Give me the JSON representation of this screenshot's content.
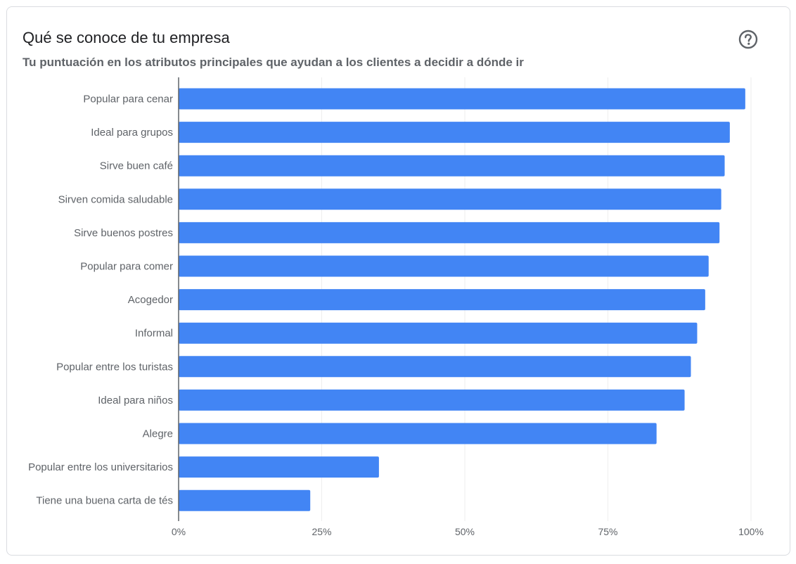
{
  "card": {
    "title": "Qué se conoce de tu empresa",
    "subtitle": "Tu puntuación en los atributos principales que ayudan a los clientes a decidir a dónde ir",
    "help_icon": "help-circle-icon"
  },
  "colors": {
    "bar": "#4285f4",
    "grid": "#eeeeee",
    "axis": "#5f6368",
    "label": "#5f6368"
  },
  "chart_data": {
    "type": "bar",
    "orientation": "horizontal",
    "title": "",
    "xlabel": "",
    "ylabel": "",
    "xlim": [
      0,
      100
    ],
    "grid": true,
    "ticks": [
      {
        "value": 0,
        "label": "0%"
      },
      {
        "value": 25,
        "label": "25%"
      },
      {
        "value": 50,
        "label": "50%"
      },
      {
        "value": 75,
        "label": "75%"
      },
      {
        "value": 100,
        "label": "100%"
      }
    ],
    "categories": [
      "Popular para cenar",
      "Ideal para grupos",
      "Sirve buen café",
      "Sirven comida saludable",
      "Sirve buenos postres",
      "Popular para comer",
      "Acogedor",
      "Informal",
      "Popular entre los turistas",
      "Ideal para niños",
      "Alegre",
      "Popular entre los universitarios",
      "Tiene una buena carta de tés"
    ],
    "values": [
      99,
      96.3,
      95.4,
      94.8,
      94.5,
      92.6,
      92,
      90.6,
      89.5,
      88.4,
      83.5,
      35,
      23
    ]
  }
}
